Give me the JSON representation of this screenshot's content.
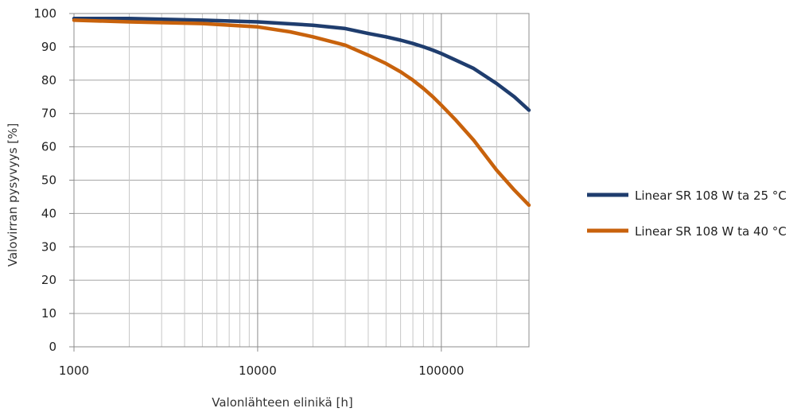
{
  "chart_data": {
    "type": "line",
    "xlabel": "Valonlähteen elinikä [h]",
    "ylabel": "Valovirran pysyvyys [%]",
    "x_scale": "log",
    "xlim": [
      1000,
      300000
    ],
    "ylim": [
      0,
      100
    ],
    "x_ticks": [
      1000,
      10000,
      100000
    ],
    "x_tick_labels": [
      "1000",
      "10000",
      "100000"
    ],
    "y_ticks": [
      0,
      10,
      20,
      30,
      40,
      50,
      60,
      70,
      80,
      90,
      100
    ],
    "y_tick_labels": [
      "0",
      "10",
      "20",
      "30",
      "40",
      "50",
      "60",
      "70",
      "80",
      "90",
      "100"
    ],
    "grid": true,
    "legend": "right",
    "series": [
      {
        "name": "Linear SR 108 W ta 25 °C",
        "color": "#1f3d6e",
        "x": [
          1000,
          2000,
          5000,
          10000,
          20000,
          30000,
          40000,
          50000,
          60000,
          70000,
          80000,
          90000,
          100000,
          120000,
          150000,
          200000,
          250000,
          300000
        ],
        "y": [
          98.5,
          98.5,
          98,
          97.5,
          96.5,
          95.5,
          94,
          93,
          92,
          91,
          90,
          89,
          88,
          86,
          83.5,
          79,
          75,
          71
        ]
      },
      {
        "name": "Linear SR 108 W ta 40 °C",
        "color": "#c8620c",
        "x": [
          1000,
          2000,
          5000,
          10000,
          15000,
          20000,
          30000,
          40000,
          50000,
          60000,
          70000,
          80000,
          90000,
          100000,
          120000,
          150000,
          200000,
          250000,
          300000
        ],
        "y": [
          98,
          97.5,
          97,
          96,
          94.5,
          93,
          90.5,
          87.5,
          85,
          82.5,
          80,
          77.5,
          75,
          72.5,
          68,
          62,
          53,
          47,
          42.5
        ]
      }
    ]
  }
}
